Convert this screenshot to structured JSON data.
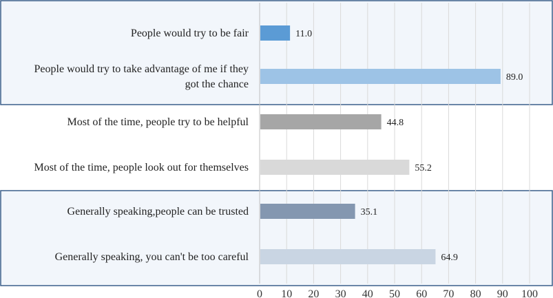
{
  "chart_data": {
    "type": "bar",
    "orientation": "horizontal",
    "title": "",
    "xlabel": "",
    "ylabel": "",
    "xlim": [
      0,
      100
    ],
    "ticks": [
      "0",
      "10",
      "20",
      "30",
      "40",
      "50",
      "60",
      "70",
      "80",
      "90",
      "100"
    ],
    "grid": true,
    "categories": [
      "People would try to be fair",
      "People would try to take advantage of me if they got the chance",
      "Most of the time, people try to be helpful",
      "Most of the time, people look out for themselves",
      "Generally speaking,people can be trusted",
      "Generally speaking, you can't be too careful"
    ],
    "category_lines": [
      [
        "People would try to be fair"
      ],
      [
        "People would try to take advantage of me if they",
        "got the chance"
      ],
      [
        "Most of the time, people try to be helpful"
      ],
      [
        "Most of the time, people look out for themselves"
      ],
      [
        "Generally speaking,people can be trusted"
      ],
      [
        "Generally speaking, you can't be too careful"
      ]
    ],
    "values": [
      11.0,
      89.0,
      44.8,
      55.2,
      35.1,
      64.9
    ],
    "value_labels": [
      "11.0",
      "89.0",
      "44.8",
      "55.2",
      "35.1",
      "64.9"
    ],
    "colors": [
      "#5b9bd5",
      "#9dc3e6",
      "#a6a6a6",
      "#d9d9d9",
      "#8497b0",
      "#c9d5e3"
    ],
    "group_box_color": "#3a5f8a",
    "group_fill_color": "#f2f6fb"
  }
}
